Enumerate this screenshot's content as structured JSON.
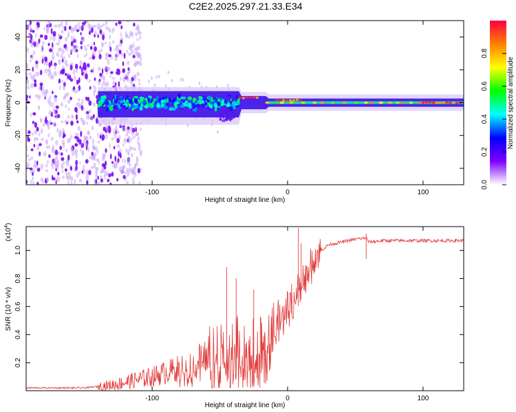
{
  "figure_title": "C2E2.2025.297.21.33.E34",
  "chart_data": [
    {
      "type": "heatmap",
      "title": "C2E2.2025.297.21.33.E34",
      "xlabel": "Height of straight line (km)",
      "ylabel": "Frequency (Hz)",
      "xlim": [
        -193,
        130
      ],
      "ylim": [
        -50,
        50
      ],
      "x_ticks": [
        -100,
        0,
        100
      ],
      "y_ticks": [
        -40,
        -20,
        0,
        20,
        40
      ],
      "colorbar": {
        "label": "Normalized spectral amplitude",
        "range": [
          0,
          1
        ],
        "ticks": [
          "0.0",
          "0.2",
          "0.4",
          "0.6",
          "0.8"
        ],
        "colormap": [
          "#ffffff",
          "#7f00ff",
          "#0000ff",
          "#00ffff",
          "#00ff00",
          "#ffff00",
          "#ff8000",
          "#ff0040"
        ]
      },
      "features": {
        "noise_region_x": [
          -193,
          -120
        ],
        "signal_center_frequency": 0,
        "signal_start_x": -140,
        "stable_tone_from_x": -15
      }
    },
    {
      "type": "line",
      "xlabel": "Height of straight line (km)",
      "ylabel": "SNR (10 * v/v)",
      "y_scale_label": "(x10",
      "y_scale_exponent": "4",
      "xlim": [
        -193,
        130
      ],
      "ylim": [
        0.0,
        1.17
      ],
      "x_ticks": [
        -100,
        0,
        100
      ],
      "y_ticks": [
        "0.2",
        "0.4",
        "0.6",
        "0.8",
        "1.0"
      ],
      "line_color": "#e03a3a",
      "series": [
        {
          "name": "SNR",
          "x": [
            -193,
            -170,
            -150,
            -130,
            -120,
            -110,
            -100,
            -90,
            -80,
            -70,
            -60,
            -50,
            -45,
            -40,
            -35,
            -30,
            -25,
            -20,
            -15,
            -10,
            -5,
            0,
            5,
            10,
            15,
            20,
            25,
            30,
            40,
            50,
            58,
            60,
            70,
            80,
            90,
            100,
            110,
            120,
            130
          ],
          "y": [
            0.02,
            0.02,
            0.02,
            0.04,
            0.06,
            0.08,
            0.1,
            0.13,
            0.16,
            0.2,
            0.25,
            0.3,
            0.32,
            0.3,
            0.33,
            0.35,
            0.34,
            0.32,
            0.38,
            0.5,
            0.55,
            0.6,
            0.68,
            0.8,
            0.85,
            0.96,
            1.0,
            1.04,
            1.06,
            1.08,
            1.09,
            1.06,
            1.07,
            1.07,
            1.07,
            1.07,
            1.07,
            1.07,
            1.07
          ]
        }
      ],
      "spikes": [
        {
          "x": -45,
          "y": 0.88
        },
        {
          "x": -38,
          "y": 0.8
        },
        {
          "x": -25,
          "y": 0.72
        },
        {
          "x": 8,
          "y": 1.16
        },
        {
          "x": 10,
          "y": 1.05
        },
        {
          "x": 58,
          "y": 1.12
        }
      ]
    }
  ]
}
